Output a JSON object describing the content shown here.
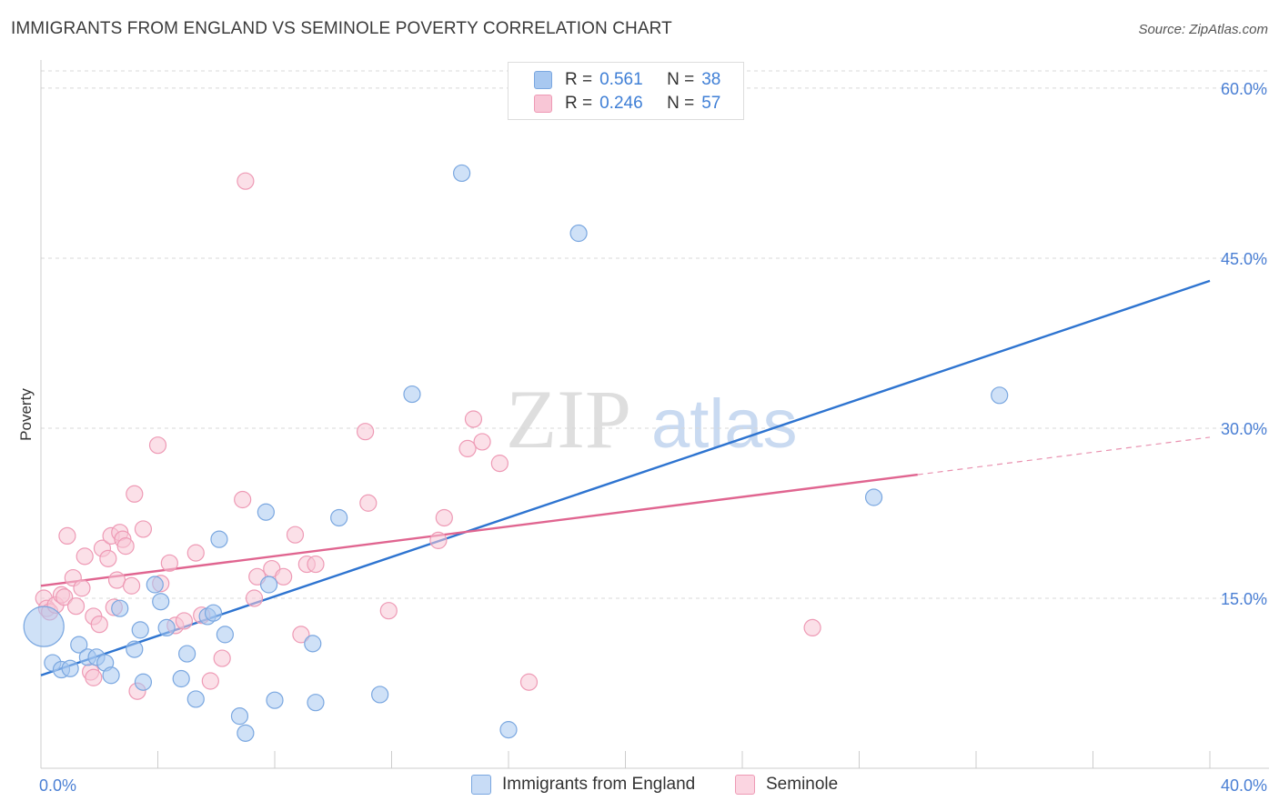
{
  "title": "IMMIGRANTS FROM ENGLAND VS SEMINOLE POVERTY CORRELATION CHART",
  "source": "Source: ZipAtlas.com",
  "watermark": {
    "zip": "ZIP",
    "atlas": "atlas"
  },
  "legend": {
    "r_label": "R =",
    "n_label": "N =",
    "items": [
      {
        "r": "0.561",
        "n": "38",
        "color": "#a8c8f0",
        "border": "#7aa7e0"
      },
      {
        "r": "0.246",
        "n": "57",
        "color": "#f8c6d6",
        "border": "#ee9ab5"
      }
    ]
  },
  "bottom_legend": [
    {
      "label": "Immigrants from England",
      "color": "#c8dcf6",
      "border": "#7aa7e0"
    },
    {
      "label": "Seminole",
      "color": "#fbd5e1",
      "border": "#ee9ab5"
    }
  ],
  "chart_data": {
    "type": "scatter",
    "title": "IMMIGRANTS FROM ENGLAND VS SEMINOLE POVERTY CORRELATION CHART",
    "xlabel": "",
    "ylabel": "Poverty",
    "xlim": [
      0,
      40
    ],
    "ylim": [
      0,
      62
    ],
    "x_tick_labels": [
      {
        "x": 0,
        "label": "0.0%"
      },
      {
        "x": 40,
        "label": "40.0%"
      }
    ],
    "y_ticks": [
      15,
      30,
      45,
      60
    ],
    "y_tick_labels": [
      "15.0%",
      "30.0%",
      "45.0%",
      "60.0%"
    ],
    "x_ticks": [
      0,
      4,
      8,
      12,
      16,
      20,
      24,
      28,
      32,
      36,
      40
    ],
    "grid": true,
    "series": [
      {
        "name": "Immigrants from England",
        "color": "#5b93df",
        "fill": "rgba(168,200,240,0.55)",
        "stroke": "#7aa7e0",
        "trend": {
          "x0": 0,
          "y0": 8.2,
          "x1": 40,
          "y1": 43.0,
          "color": "#2e74d0"
        },
        "points": [
          [
            0.1,
            12.5,
            "big"
          ],
          [
            0.4,
            9.3
          ],
          [
            0.7,
            8.7
          ],
          [
            1.0,
            8.8
          ],
          [
            1.3,
            10.9
          ],
          [
            1.6,
            9.8
          ],
          [
            1.9,
            9.8
          ],
          [
            2.2,
            9.3
          ],
          [
            2.4,
            8.2
          ],
          [
            2.7,
            14.1
          ],
          [
            3.2,
            10.5
          ],
          [
            3.4,
            12.2
          ],
          [
            3.5,
            7.6
          ],
          [
            3.9,
            16.2
          ],
          [
            4.1,
            14.7
          ],
          [
            4.3,
            12.4
          ],
          [
            4.8,
            7.9
          ],
          [
            5.0,
            10.1
          ],
          [
            5.3,
            6.1
          ],
          [
            5.7,
            13.4
          ],
          [
            5.9,
            13.7
          ],
          [
            6.1,
            20.2
          ],
          [
            6.3,
            11.8
          ],
          [
            6.8,
            4.6
          ],
          [
            7.0,
            3.1
          ],
          [
            7.7,
            22.6
          ],
          [
            7.8,
            16.2
          ],
          [
            8.0,
            6.0
          ],
          [
            9.3,
            11.0
          ],
          [
            9.4,
            5.8
          ],
          [
            10.2,
            22.1
          ],
          [
            11.6,
            6.5
          ],
          [
            12.7,
            33.0
          ],
          [
            14.4,
            52.5
          ],
          [
            16.0,
            3.4
          ],
          [
            18.4,
            47.2
          ],
          [
            28.5,
            23.9
          ],
          [
            32.8,
            32.9
          ]
        ]
      },
      {
        "name": "Seminole",
        "color": "#ec7fa3",
        "fill": "rgba(248,198,214,0.55)",
        "stroke": "#ee9ab5",
        "trend": {
          "x0": 0,
          "y0": 16.1,
          "x1": 30,
          "y1": 25.9,
          "dash_x1": 40,
          "dash_y1": 29.2,
          "color": "#e06590"
        },
        "points": [
          [
            0.1,
            15.0
          ],
          [
            0.2,
            14.1
          ],
          [
            0.3,
            13.8
          ],
          [
            0.5,
            14.4
          ],
          [
            0.7,
            15.3
          ],
          [
            0.8,
            15.1
          ],
          [
            0.9,
            20.5
          ],
          [
            1.1,
            16.8
          ],
          [
            1.2,
            14.3
          ],
          [
            1.4,
            15.9
          ],
          [
            1.5,
            18.7
          ],
          [
            1.7,
            8.5
          ],
          [
            1.8,
            8.0
          ],
          [
            1.8,
            13.4
          ],
          [
            2.0,
            12.7
          ],
          [
            2.1,
            19.4
          ],
          [
            2.3,
            18.5
          ],
          [
            2.4,
            20.5
          ],
          [
            2.5,
            14.2
          ],
          [
            2.6,
            16.6
          ],
          [
            2.7,
            20.8
          ],
          [
            2.8,
            20.2
          ],
          [
            2.9,
            19.6
          ],
          [
            3.1,
            16.1
          ],
          [
            3.2,
            24.2
          ],
          [
            3.3,
            6.8
          ],
          [
            3.5,
            21.1
          ],
          [
            4.0,
            28.5
          ],
          [
            4.1,
            16.3
          ],
          [
            4.4,
            18.1
          ],
          [
            4.6,
            12.6
          ],
          [
            4.9,
            13.0
          ],
          [
            5.3,
            19.0
          ],
          [
            5.5,
            13.5
          ],
          [
            5.8,
            7.7
          ],
          [
            6.2,
            9.7
          ],
          [
            6.9,
            23.7
          ],
          [
            7.0,
            51.8
          ],
          [
            7.3,
            15.0
          ],
          [
            7.4,
            16.9
          ],
          [
            7.9,
            17.6
          ],
          [
            8.3,
            16.9
          ],
          [
            8.7,
            20.6
          ],
          [
            8.9,
            11.8
          ],
          [
            9.1,
            18.0
          ],
          [
            9.4,
            18.0
          ],
          [
            11.1,
            29.7
          ],
          [
            11.2,
            23.4
          ],
          [
            11.9,
            13.9
          ],
          [
            13.6,
            20.1
          ],
          [
            13.8,
            22.1
          ],
          [
            14.6,
            28.2
          ],
          [
            14.8,
            30.8
          ],
          [
            15.1,
            28.8
          ],
          [
            15.7,
            26.9
          ],
          [
            16.7,
            7.6
          ],
          [
            26.4,
            12.4
          ]
        ]
      }
    ]
  }
}
